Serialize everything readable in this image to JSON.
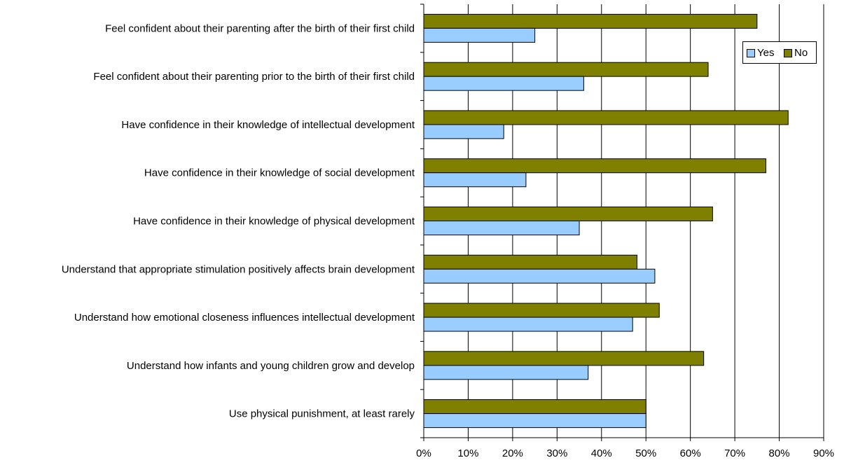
{
  "chart_data": {
    "type": "bar",
    "orientation": "horizontal",
    "categories": [
      "Feel confident about their parenting after the birth of their first child",
      "Feel confident about their parenting prior to the birth of their first child",
      "Have confidence in their knowledge of intellectual development",
      "Have confidence in their knowledge of social development",
      "Have confidence in their knowledge of physical development",
      "Understand that appropriate stimulation positively affects brain development",
      "Understand how emotional closeness influences intellectual development",
      "Understand how infants and young children grow and develop",
      "Use physical punishment, at least rarely"
    ],
    "series": [
      {
        "name": "Yes",
        "color": "#99ccff",
        "values": [
          25,
          36,
          18,
          23,
          35,
          52,
          47,
          37,
          50
        ]
      },
      {
        "name": "No",
        "color": "#808000",
        "values": [
          75,
          64,
          82,
          77,
          65,
          48,
          53,
          63,
          50
        ]
      }
    ],
    "x_ticks": [
      "0%",
      "10%",
      "20%",
      "30%",
      "40%",
      "50%",
      "60%",
      "70%",
      "80%",
      "90%"
    ],
    "xlim": [
      0,
      90
    ],
    "grid": true,
    "legend": {
      "position": "top-right",
      "entries": [
        "Yes",
        "No"
      ]
    }
  }
}
